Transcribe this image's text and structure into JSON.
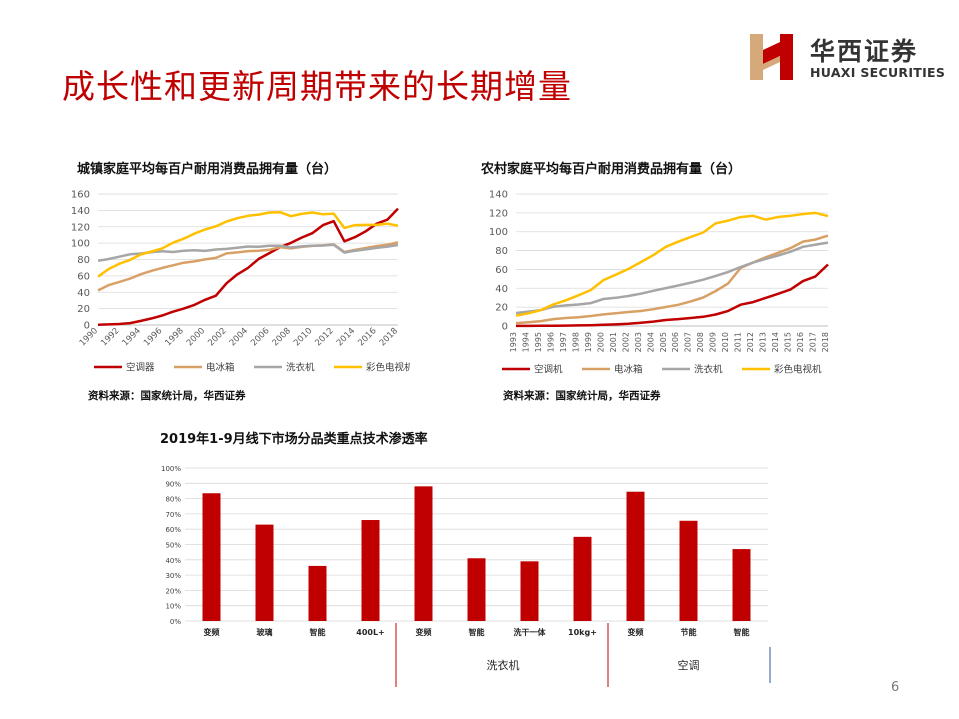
{
  "page": {
    "title": "成长性和更新周期带来的长期增量",
    "page_number": "6"
  },
  "logo": {
    "cn": "华西证券",
    "en": "HUAXI SECURITIES",
    "color": "#c00000"
  },
  "chart_data": [
    {
      "id": "urban",
      "type": "line",
      "title": "城镇家庭平均每百户耐用消费品拥有量（台）",
      "source": "资料来源：国家统计局，华西证券",
      "ylim": [
        0,
        160
      ],
      "yticks": [
        0,
        20,
        40,
        60,
        80,
        100,
        120,
        140,
        160
      ],
      "x": [
        1990,
        1991,
        1992,
        1993,
        1994,
        1995,
        1996,
        1997,
        1998,
        1999,
        2000,
        2001,
        2002,
        2003,
        2004,
        2005,
        2006,
        2007,
        2008,
        2009,
        2010,
        2011,
        2012,
        2013,
        2014,
        2015,
        2016,
        2017,
        2018
      ],
      "xtick_labels": [
        "1990",
        "1992",
        "1994",
        "1996",
        "1998",
        "2000",
        "2002",
        "2004",
        "2006",
        "2008",
        "2010",
        "2012",
        "2014",
        "2016",
        "2018"
      ],
      "grid": true,
      "legend": "bottom",
      "series": [
        {
          "name": "空调器",
          "color": "#c00000",
          "values": [
            0.3,
            0.7,
            1.2,
            2.3,
            5,
            8,
            11.6,
            16.3,
            20,
            24.5,
            30.8,
            35.8,
            51.1,
            61.8,
            69.8,
            80.7,
            87.8,
            95.1,
            100.3,
            106.8,
            112.1,
            122,
            126.8,
            102.2,
            107.4,
            114.6,
            123.7,
            128.6,
            142.2
          ]
        },
        {
          "name": "电冰箱",
          "color": "#d9a066",
          "values": [
            42.3,
            48.7,
            52.6,
            56.7,
            62.1,
            66.2,
            69.7,
            72.9,
            76.1,
            77.7,
            80.1,
            81.9,
            87.4,
            88.7,
            90.2,
            90.7,
            91.8,
            95,
            93.6,
            95.4,
            96.6,
            97.2,
            98.5,
            89.2,
            91.7,
            94,
            96.4,
            98,
            100.9
          ]
        },
        {
          "name": "洗衣机",
          "color": "#a6a6a6",
          "values": [
            78.4,
            80.6,
            83.4,
            86.4,
            87.3,
            89,
            90.1,
            89.1,
            90.6,
            91.4,
            90.5,
            92.2,
            92.9,
            94.4,
            95.9,
            95.5,
            96.8,
            96.8,
            94.7,
            96,
            96.9,
            97.1,
            98,
            88.4,
            90.7,
            92.3,
            94.2,
            95.7,
            97.7
          ]
        },
        {
          "name": "彩色电视机",
          "color": "#ffc000",
          "values": [
            59,
            68.4,
            74.9,
            79.5,
            86.2,
            89.8,
            93.5,
            100.5,
            105.4,
            111.6,
            116.6,
            120.5,
            126.4,
            130.5,
            133.4,
            134.8,
            137.4,
            137.8,
            132.9,
            135.7,
            137.4,
            135.2,
            136.1,
            118.6,
            122,
            122.3,
            122.3,
            123.8,
            121.3
          ]
        }
      ]
    },
    {
      "id": "rural",
      "type": "line",
      "title": "农村家庭平均每百户耐用消费品拥有量（台）",
      "source": "资料来源：国家统计局，华西证券",
      "ylim": [
        0,
        140
      ],
      "yticks": [
        0,
        20,
        40,
        60,
        80,
        100,
        120,
        140
      ],
      "x": [
        1993,
        1994,
        1995,
        1996,
        1997,
        1998,
        1999,
        2000,
        2001,
        2002,
        2003,
        2004,
        2005,
        2006,
        2007,
        2008,
        2009,
        2010,
        2011,
        2012,
        2013,
        2014,
        2015,
        2016,
        2017,
        2018
      ],
      "xtick_labels": [
        "1993",
        "1994",
        "1995",
        "1996",
        "1997",
        "1998",
        "1999",
        "2000",
        "2001",
        "2002",
        "2003",
        "2004",
        "2005",
        "2006",
        "2007",
        "2008",
        "2009",
        "2010",
        "2011",
        "2012",
        "2013",
        "2014",
        "2015",
        "2016",
        "2017",
        "2018"
      ],
      "grid": true,
      "legend": "bottom",
      "series": [
        {
          "name": "空调机",
          "color": "#c00000",
          "values": [
            0.1,
            0.1,
            0.2,
            0.3,
            0.4,
            0.6,
            0.8,
            1.3,
            1.7,
            2.3,
            3.5,
            4.7,
            6.4,
            7.3,
            8.5,
            9.8,
            12.2,
            16,
            22.6,
            25.4,
            29.8,
            34.2,
            38.8,
            47.6,
            52.6,
            65.2
          ]
        },
        {
          "name": "电冰箱",
          "color": "#d9a066",
          "values": [
            3.1,
            4,
            5.2,
            7.3,
            8.5,
            9.3,
            10.6,
            12.3,
            13.6,
            14.8,
            15.9,
            17.8,
            20.1,
            22.5,
            26.1,
            30.2,
            37.1,
            45.2,
            61.5,
            67.3,
            72.9,
            77.6,
            82.6,
            89.5,
            91.7,
            95.9
          ]
        },
        {
          "name": "洗衣机",
          "color": "#a6a6a6",
          "values": [
            13.8,
            15.3,
            16.9,
            20.5,
            21.9,
            22.8,
            24.3,
            28.6,
            29.9,
            31.8,
            34.3,
            37.3,
            40.2,
            43,
            45.9,
            49.1,
            53.1,
            57.3,
            62.6,
            67.2,
            71.2,
            74.8,
            78.8,
            84,
            86.3,
            88.5
          ]
        },
        {
          "name": "彩色电视机",
          "color": "#ffc000",
          "values": [
            10.9,
            13.5,
            16.9,
            22.9,
            27.3,
            32.6,
            38.2,
            48.7,
            54.4,
            60.5,
            67.8,
            75.1,
            84,
            89.4,
            94.4,
            99.2,
            108.9,
            111.8,
            115.5,
            116.9,
            112.9,
            115.6,
            116.9,
            118.8,
            120,
            116.6
          ]
        }
      ]
    },
    {
      "id": "penetration",
      "type": "bar",
      "title": "2019年1-9月线下市场分品类重点技术渗透率",
      "ylim": [
        0,
        100
      ],
      "yticks": [
        "0%",
        "10%",
        "20%",
        "30%",
        "40%",
        "50%",
        "60%",
        "70%",
        "80%",
        "90%",
        "100%"
      ],
      "categories": [
        "变频",
        "玻璃",
        "智能",
        "400L+",
        "变频",
        "智能",
        "洗干一体",
        "10kg+",
        "变频",
        "节能",
        "智能"
      ],
      "values": [
        83.5,
        63,
        36,
        66,
        88,
        41,
        39,
        55,
        84.5,
        65.5,
        47
      ],
      "color": "#c00000",
      "groups": [
        {
          "label": "",
          "span": [
            0,
            3
          ]
        },
        {
          "label": "洗衣机",
          "span": [
            4,
            7
          ]
        },
        {
          "label": "空调",
          "span": [
            8,
            10
          ]
        }
      ]
    }
  ]
}
